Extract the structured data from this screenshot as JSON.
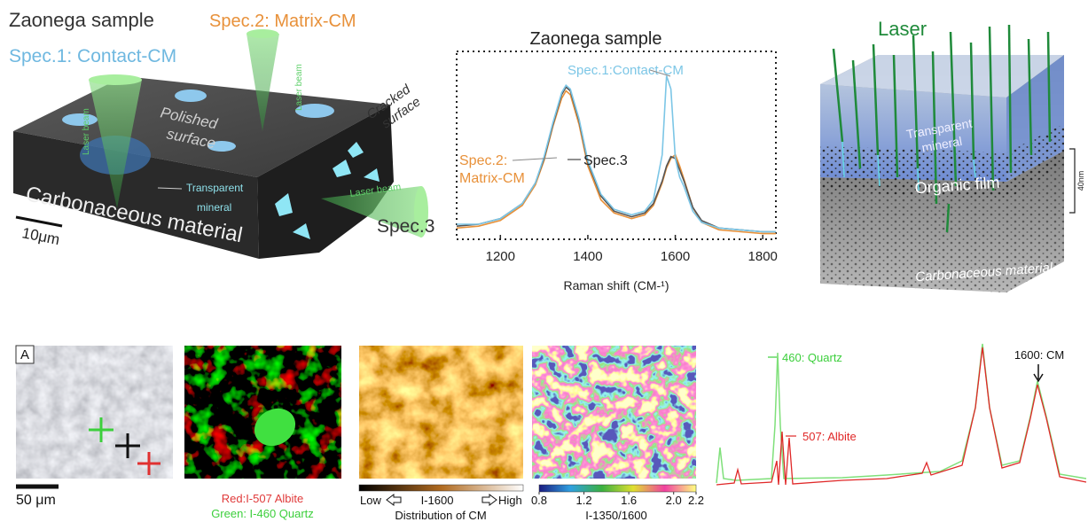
{
  "left_diagram": {
    "title": "Zaonega sample",
    "spec2": "Spec.2: Matrix-CM",
    "spec1": "Spec.1: Contact-CM",
    "laser_beams": [
      "Laser beam",
      "Laser beam",
      "Laser beam"
    ],
    "polished_surface": [
      "Polished",
      "surface"
    ],
    "cracked_surface": [
      "Cracked",
      "surface"
    ],
    "transparent_mineral": [
      "Transparent",
      "mineral"
    ],
    "material": "Carbonaceous material",
    "scale": "10μm",
    "spec3": "Spec.3"
  },
  "chart_data": {
    "type": "line",
    "title": "Zaonega sample",
    "x_label": "Raman shift (CM-¹)",
    "x": [
      1100,
      1150,
      1200,
      1250,
      1280,
      1300,
      1320,
      1340,
      1350,
      1360,
      1380,
      1400,
      1430,
      1460,
      1500,
      1530,
      1550,
      1570,
      1580,
      1590,
      1600,
      1610,
      1620,
      1640,
      1660,
      1700,
      1750,
      1800,
      1830
    ],
    "xlim": [
      1100,
      1830
    ],
    "xticks": [
      1200,
      1400,
      1600,
      1800
    ],
    "ylim": [
      5,
      105
    ],
    "series": [
      {
        "name": "Spec.1:Contact-CM",
        "color": "#7cc6e6",
        "values": [
          13,
          13,
          16,
          24,
          35,
          49,
          67,
          83,
          87,
          85,
          69,
          47,
          29,
          21,
          18,
          20,
          26,
          50,
          92,
          85,
          48,
          38,
          33,
          20,
          14,
          11,
          10,
          9,
          9
        ]
      },
      {
        "name": "Spec.2: Matrix-CM",
        "color": "#e8913a",
        "values": [
          11,
          12,
          15,
          23,
          34,
          47,
          65,
          80,
          84,
          82,
          66,
          44,
          26,
          19,
          16,
          18,
          23,
          35,
          43,
          48,
          50,
          44,
          37,
          22,
          14,
          10,
          9,
          8,
          8
        ]
      },
      {
        "name": "Spec.3",
        "color": "#555555",
        "values": [
          12,
          13,
          16,
          24,
          35,
          48,
          66,
          82,
          86,
          84,
          68,
          46,
          28,
          20,
          17,
          19,
          24,
          36,
          44,
          49,
          48,
          42,
          36,
          22,
          15,
          11,
          10,
          9,
          9
        ]
      }
    ]
  },
  "right_diagram": {
    "laser": "Laser",
    "transparent_mineral": [
      "Transparent",
      "mineral"
    ],
    "organic_film": "Organic film",
    "thickness": "40nm",
    "material": "Carbonaceous material"
  },
  "maps": {
    "panel_label": "A",
    "scale": "50 μm",
    "rgb_caption": [
      "Red:I-507 Albite",
      "Green: I-460 Quartz"
    ],
    "cm_bar": {
      "low": "Low",
      "name": "I-1600",
      "high": "High",
      "caption": "Distribution of CM"
    },
    "ratio_bar": {
      "lim": [
        0.8,
        2.2
      ],
      "ticks": [
        0.8,
        1.2,
        1.6,
        {
          "value": 2,
          "label": "2.0"
        },
        2.2
      ],
      "caption": "I-1350/1600"
    }
  },
  "spectrum_bottom": {
    "quartz": "460: Quartz",
    "albite": "507: Albite",
    "cm": "1600: CM"
  }
}
